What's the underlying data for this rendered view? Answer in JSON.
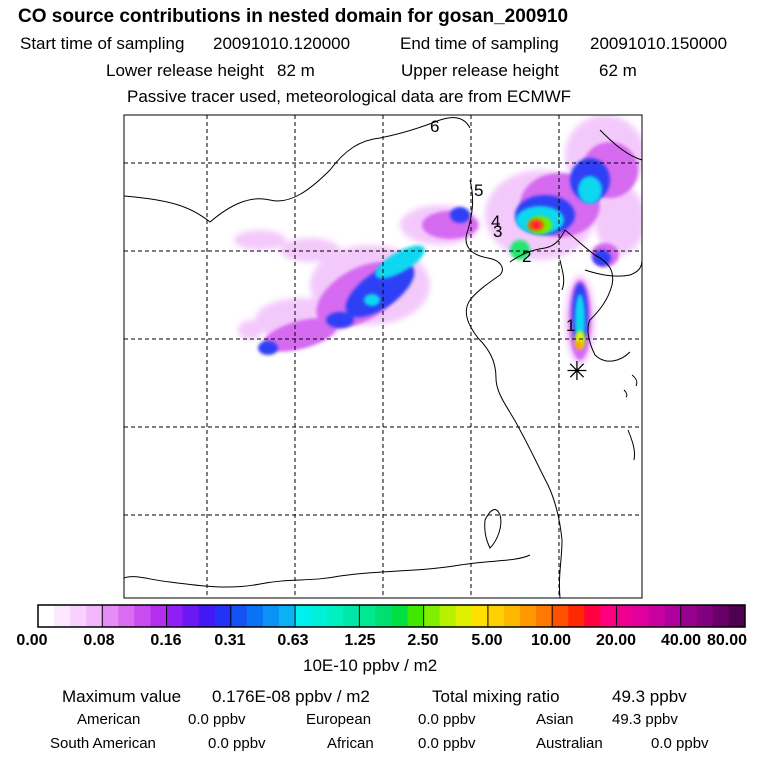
{
  "header": {
    "title": "CO  source contributions in nested domain for gosan_200910",
    "start_label": "Start time of sampling",
    "start_value": "20091010.120000",
    "end_label": "End time of sampling",
    "end_value": "20091010.150000",
    "lower_label": "Lower release height",
    "lower_value": "82 m",
    "upper_label": "Upper release height",
    "upper_value": "62 m",
    "tracer_note": "Passive tracer used, meteorological data are from ECMWF"
  },
  "map": {
    "markers": [
      "1",
      "2",
      "3",
      "4",
      "5",
      "6"
    ],
    "receptor_symbol": "✳"
  },
  "colorbar": {
    "labels": [
      "0.00",
      "0.08",
      "0.16",
      "0.31",
      "0.63",
      "1.25",
      "2.50",
      "5.00",
      "10.00",
      "20.00",
      "40.00",
      "80.00"
    ],
    "unit": "10E-10 ppbv / m2",
    "colors": [
      "#ffffff",
      "#fce8ff",
      "#f8d2ff",
      "#f3b8fb",
      "#e58cf6",
      "#d96cf3",
      "#c84cf0",
      "#b42ef0",
      "#8f1ff2",
      "#6a18f4",
      "#4418f5",
      "#2232f6",
      "#1452f4",
      "#0a72f4",
      "#0a92f4",
      "#0ab2f2",
      "#00f0f0",
      "#00f0d8",
      "#00f0c0",
      "#00e8a8",
      "#00e890",
      "#00e070",
      "#00e040",
      "#40e800",
      "#80f000",
      "#b8f000",
      "#e0f000",
      "#ffe000",
      "#ffd000",
      "#ffb800",
      "#ff9800",
      "#ff7800",
      "#ff5000",
      "#ff2800",
      "#ff0040",
      "#ff0080",
      "#f00090",
      "#e000a0",
      "#c800a0",
      "#b000a0",
      "#980090",
      "#800080",
      "#680068",
      "#500050"
    ]
  },
  "stats": {
    "max_label": "Maximum value",
    "max_value": "0.176E-08 ppbv / m2",
    "total_label": "Total mixing ratio",
    "total_value": "49.3 ppbv",
    "regions": [
      {
        "name": "American",
        "value": "0.0 ppbv"
      },
      {
        "name": "European",
        "value": "0.0 ppbv"
      },
      {
        "name": "Asian",
        "value": "49.3 ppbv"
      },
      {
        "name": "South American",
        "value": "0.0 ppbv"
      },
      {
        "name": "African",
        "value": "0.0 ppbv"
      },
      {
        "name": "Australian",
        "value": "0.0 ppbv"
      }
    ]
  }
}
